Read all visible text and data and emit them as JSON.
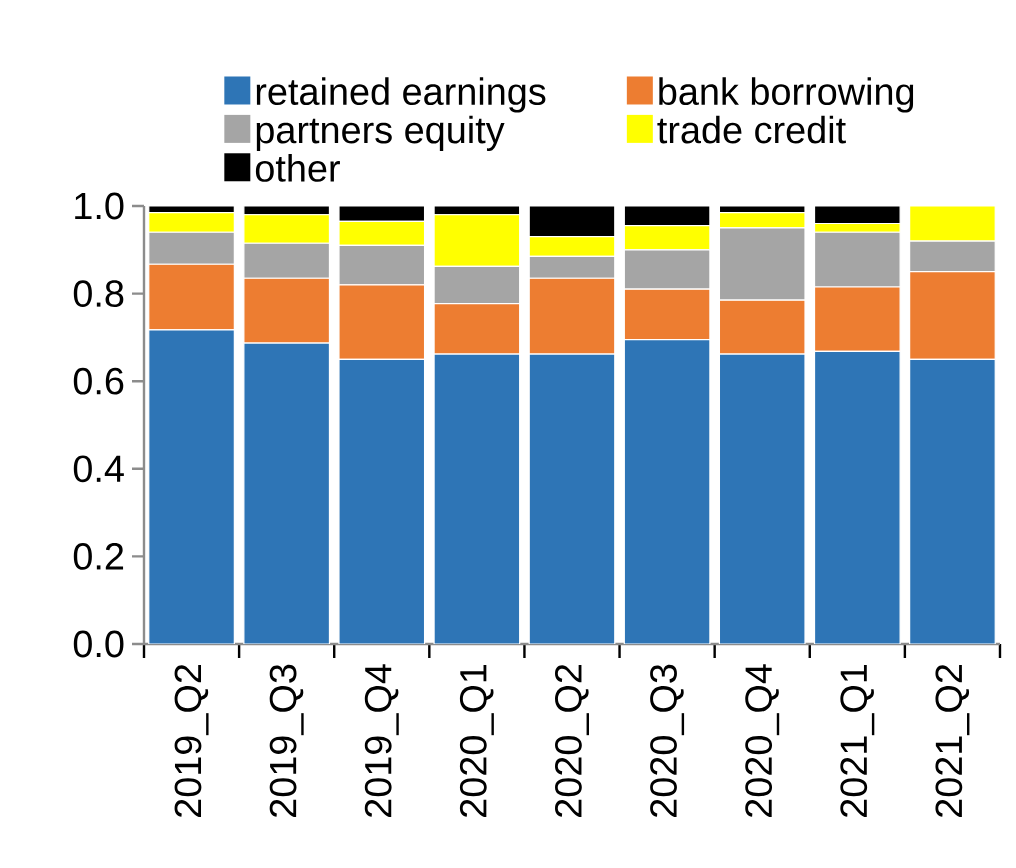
{
  "chart_data": {
    "type": "bar",
    "stacked": true,
    "categories": [
      "2019_Q2",
      "2019_Q3",
      "2019_Q4",
      "2020_Q1",
      "2020_Q2",
      "2020_Q3",
      "2020_Q4",
      "2021_Q1",
      "2021_Q2"
    ],
    "series": [
      {
        "name": "retained earnings",
        "color": "#2e75b6",
        "values": [
          0.717,
          0.687,
          0.65,
          0.662,
          0.662,
          0.695,
          0.662,
          0.668,
          0.65
        ]
      },
      {
        "name": "bank borrowing",
        "color": "#ed7d31",
        "values": [
          0.15,
          0.148,
          0.17,
          0.115,
          0.173,
          0.115,
          0.123,
          0.147,
          0.2
        ]
      },
      {
        "name": "partners equity",
        "color": "#a5a5a5",
        "values": [
          0.073,
          0.08,
          0.09,
          0.085,
          0.05,
          0.09,
          0.165,
          0.125,
          0.07
        ]
      },
      {
        "name": "trade credit",
        "color": "#ffff00",
        "values": [
          0.045,
          0.065,
          0.055,
          0.118,
          0.045,
          0.055,
          0.035,
          0.02,
          0.08
        ]
      },
      {
        "name": "other",
        "color": "#000000",
        "values": [
          0.015,
          0.02,
          0.035,
          0.02,
          0.07,
          0.045,
          0.015,
          0.04,
          0.0
        ]
      }
    ],
    "ylim": [
      0,
      1.0
    ],
    "yticks": [
      {
        "value": 0,
        "label": "0.0"
      },
      {
        "value": 0.2,
        "label": "0.2"
      },
      {
        "value": 0.4,
        "label": "0.4"
      },
      {
        "value": 0.6,
        "label": "0.6"
      },
      {
        "value": 0.8,
        "label": "0.8"
      },
      {
        "value": 1.0,
        "label": "1.0"
      }
    ],
    "legend": "top",
    "grid": false
  }
}
